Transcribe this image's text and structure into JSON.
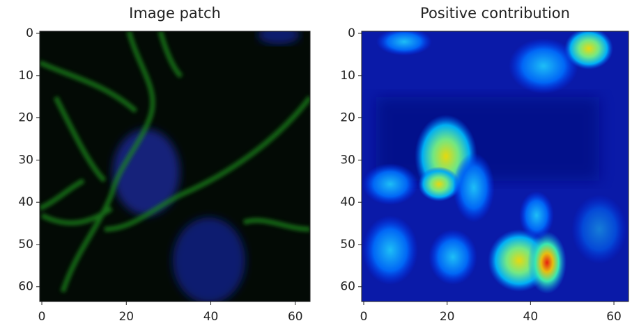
{
  "chart_data": [
    {
      "type": "image",
      "title": "Image patch",
      "xlim": [
        -0.5,
        63.5
      ],
      "ylim": [
        63.5,
        -0.5
      ],
      "xticks": [
        0,
        20,
        40,
        60
      ],
      "yticks": [
        0,
        10,
        20,
        30,
        40,
        50,
        60
      ]
    },
    {
      "type": "image",
      "title": "Positive contribution",
      "xlim": [
        -0.5,
        63.5
      ],
      "ylim": [
        63.5,
        -0.5
      ],
      "xticks": [
        0,
        20,
        40,
        60
      ],
      "yticks": [
        0,
        10,
        20,
        30,
        40,
        50,
        60
      ]
    }
  ]
}
